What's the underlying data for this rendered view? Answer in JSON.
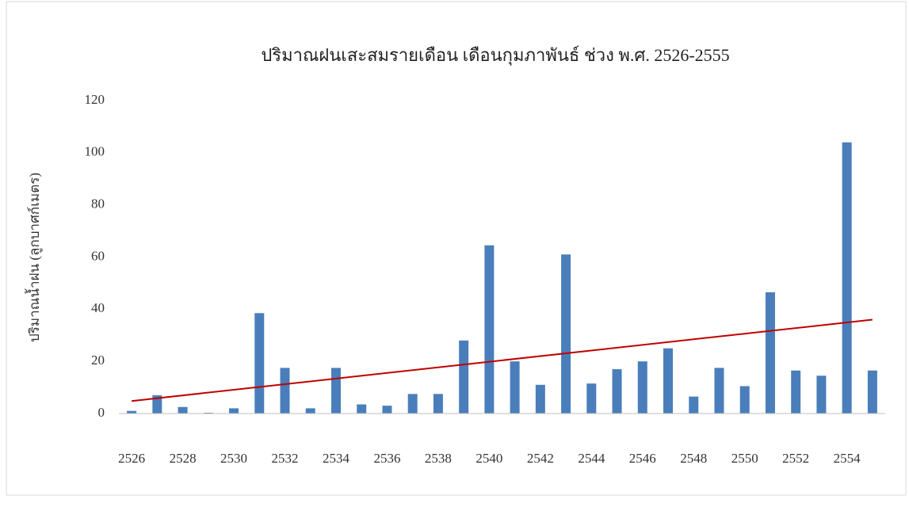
{
  "chart_data": {
    "type": "bar",
    "title": "ปริมาณฝนเสะสมรายเดือน เดือนกุมภาพันธ์ ช่วง พ.ศ. 2526-2555",
    "y_label": "ปริมาณน้ำฝน (ลูกบาศก์เมตร)",
    "categories": [
      "2526",
      null,
      "2528",
      null,
      "2530",
      null,
      "2532",
      null,
      "2534",
      null,
      "2536",
      null,
      "2538",
      null,
      "2540",
      null,
      "2542",
      null,
      "2544",
      null,
      "2546",
      null,
      "2548",
      null,
      "2550",
      null,
      "2552",
      null,
      "2554",
      null
    ],
    "values": [
      1,
      7,
      2.5,
      0.3,
      2,
      38.5,
      17.5,
      2,
      17.5,
      3.5,
      3,
      7.5,
      7.5,
      28,
      64.5,
      20,
      11,
      61,
      11.5,
      17,
      20,
      25,
      6.5,
      17.5,
      10.5,
      46.5,
      16.5,
      14.5,
      104,
      16.5
    ],
    "color": "#4a7ebb",
    "trendline": {
      "color": "#c00000",
      "values": [
        4.8,
        36
      ]
    },
    "ylim": [
      0,
      120
    ],
    "yticks": [
      0,
      20,
      40,
      60,
      80,
      100,
      120
    ],
    "grid": false
  }
}
